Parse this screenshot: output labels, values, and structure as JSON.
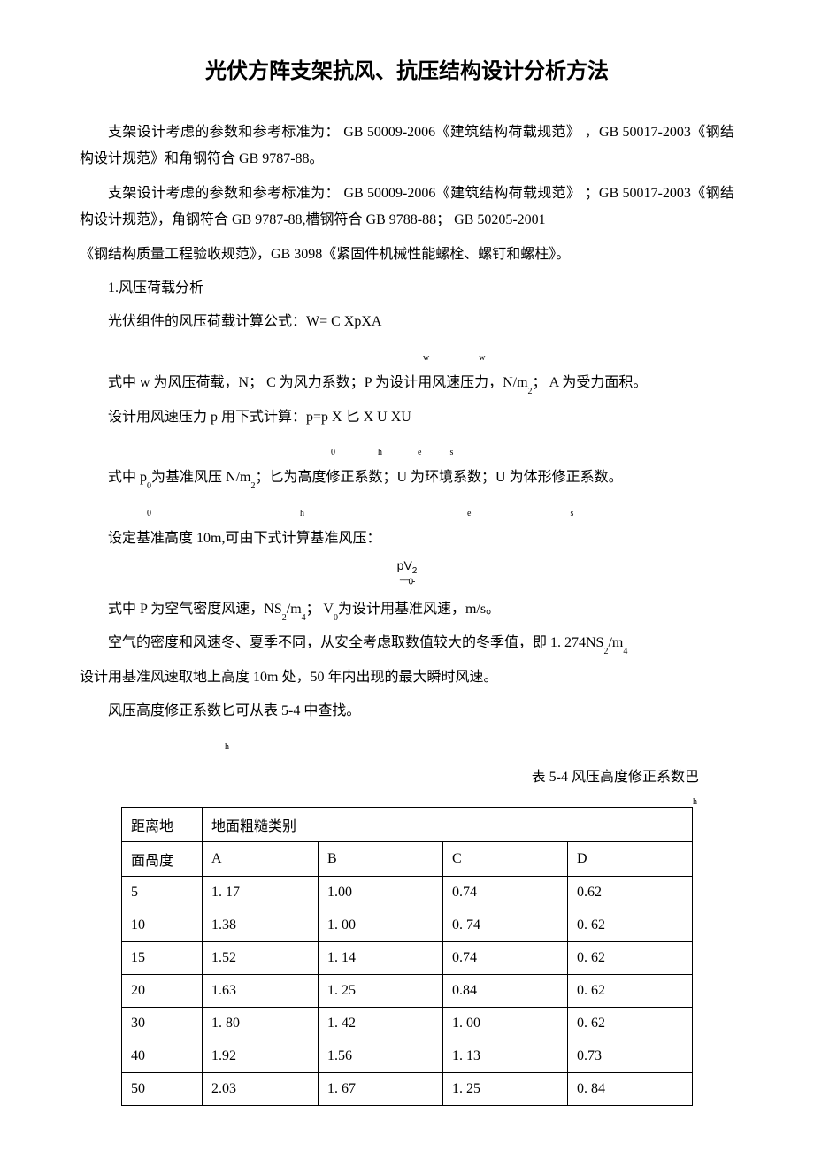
{
  "title": "光伏方阵支架抗风、抗压结构设计分析方法",
  "p1": "支架设计考虑的参数和参考标准为： GB 50009-2006《建筑结构荷载规范》 ，GB 50017-2003《钢结构设计规范》和角钢符合 GB 9787-88。",
  "p2": "支架设计考虑的参数和参考标准为： GB 50009-2006《建筑结构荷载规范》 ；GB 50017-2003《钢结构设计规范》，角钢符合 GB 9787-88,槽钢符合 GB 9788-88； GB 50205-2001",
  "p3": "《钢结构质量工程验收规范》，GB 3098《紧固件机械性能螺栓、螺钉和螺柱》。",
  "s1": "1.风压荷载分析",
  "s2a": "光伏组件的风压荷载计算公式：W= C XpXA",
  "s2b_sub1": "w",
  "s2b_sub2": "w",
  "s3a": "式中 w 为风压荷载，N； C 为风力系数；P 为设计用风速压力，N/m",
  "s3b": "； A 为受力面积。",
  "s3_sub": "2",
  "s4a": "设计用风速压力 p 用下式计算：p=p X 匕 X U XU",
  "s4_sub0": "0",
  "s4_subh": "h",
  "s4_sube": "e",
  "s4_subs": "s",
  "s5a": "式中 p",
  "s5b": "为基准风压 N/m",
  "s5c": "；匕为高度修正系数；U 为环境系数；U 为体形修正系数。",
  "s5_sub0a": "0",
  "s5_sub0b": "0",
  "s5_sub2": "2",
  "s5_subh": "h",
  "s5_sube": "e",
  "s5_subs": "s",
  "s6": "设定基准高度 10m,可由下式计算基准风压：",
  "formula_num": "pV",
  "formula_num_sup": "2",
  "formula_den_dash": "------",
  "formula_den_sub": "0-",
  "s7a": "式中 P 为空气密度风速，NS",
  "s7b": "/m",
  "s7c": "； V",
  "s7d": "为设计用基准风速，m/s。",
  "s7_sub2a": "2",
  "s7_sub4": "4",
  "s7_sub0": "0",
  "s8a": "空气的密度和风速冬、夏季不同，从安全考虑取数值较大的冬季值，即 1. 274NS",
  "s8b": "/m",
  "s8c": "设计用基准风速取地上高度 10m 处，50 年内出现的最大瞬时风速。",
  "s8_sub2": "2",
  "s8_sub4": "4",
  "s9a": "风压高度修正系数匕可从表 5-4 中查找。",
  "s9_subh": "h",
  "table_caption_a": "表 5-4 风压高度修正系数巴",
  "table_caption_subh": "h",
  "table": {
    "header1_col1": "距离地",
    "header1_col2": "地面粗糙类别",
    "header2_col1": "面咼度",
    "header2_A": "A",
    "header2_B": "B",
    "header2_C": "C",
    "header2_D": "D",
    "rows": [
      {
        "h": "5",
        "A": "1. 17",
        "B": "1.00",
        "C": "0.74",
        "D": "0.62"
      },
      {
        "h": "10",
        "A": "1.38",
        "B": "1. 00",
        "C": "0. 74",
        "D": "0. 62"
      },
      {
        "h": "15",
        "A": "1.52",
        "B": "1. 14",
        "C": "0.74",
        "D": "0. 62"
      },
      {
        "h": "20",
        "A": "1.63",
        "B": "1. 25",
        "C": "0.84",
        "D": "0. 62"
      },
      {
        "h": "30",
        "A": "1. 80",
        "B": "1. 42",
        "C": "1. 00",
        "D": "0. 62"
      },
      {
        "h": "40",
        "A": "1.92",
        "B": "1.56",
        "C": "1. 13",
        "D": "0.73"
      },
      {
        "h": "50",
        "A": "2.03",
        "B": "1. 67",
        "C": "1. 25",
        "D": "0. 84"
      }
    ]
  }
}
